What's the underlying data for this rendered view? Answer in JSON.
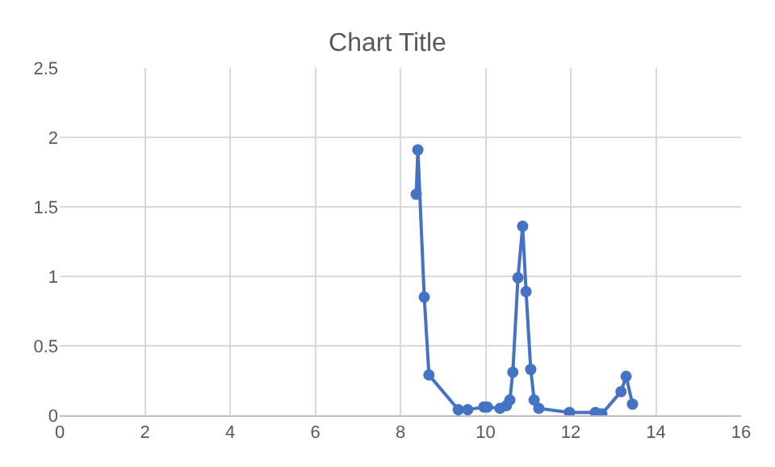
{
  "chart_data": {
    "type": "line",
    "title": "Chart Title",
    "marker": "circle",
    "grid": true,
    "legend": false,
    "x": [
      8.37,
      8.41,
      8.56,
      8.67,
      9.36,
      9.58,
      9.96,
      10.04,
      10.34,
      10.49,
      10.57,
      10.64,
      10.76,
      10.87,
      10.95,
      11.06,
      11.14,
      11.25,
      11.97,
      12.58,
      12.73,
      13.18,
      13.3,
      13.45
    ],
    "series": [
      {
        "color": "#4472c4",
        "values": [
          1.59,
          1.91,
          0.85,
          0.29,
          0.04,
          0.04,
          0.06,
          0.06,
          0.05,
          0.07,
          0.11,
          0.31,
          0.99,
          1.36,
          0.89,
          0.33,
          0.11,
          0.05,
          0.02,
          0.02,
          0.01,
          0.17,
          0.28,
          0.08
        ]
      }
    ],
    "xlim": [
      0,
      16
    ],
    "xticks": [
      0,
      2,
      4,
      6,
      8,
      10,
      12,
      14,
      16
    ],
    "ylim": [
      0,
      2.5
    ],
    "yticks": [
      0,
      0.5,
      1,
      1.5,
      2,
      2.5
    ]
  }
}
